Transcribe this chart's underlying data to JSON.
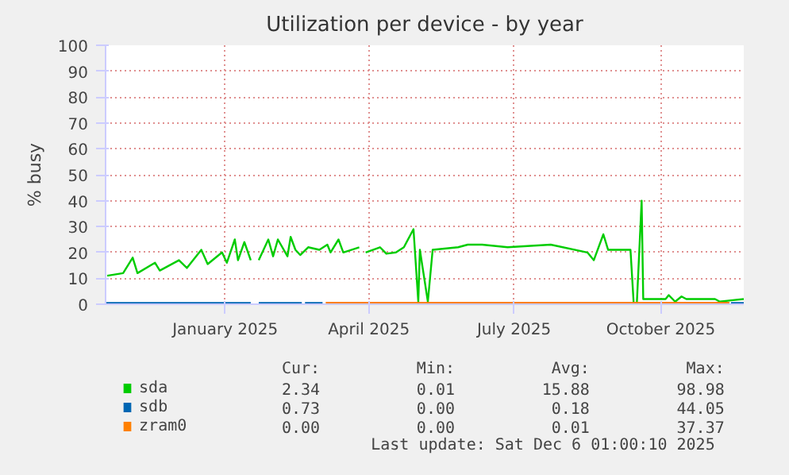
{
  "chart_data": {
    "type": "line",
    "title": "Utilization per device - by year",
    "ylabel": "% busy",
    "xlim": [
      "2024-11-01",
      "2025-12-06"
    ],
    "ylim": [
      0,
      100
    ],
    "xticks": [
      {
        "value": "2025-01-15",
        "label": "January 2025"
      },
      {
        "value": "2025-04-15",
        "label": "April 2025"
      },
      {
        "value": "2025-07-15",
        "label": "July 2025"
      },
      {
        "value": "2025-10-15",
        "label": "October 2025"
      }
    ],
    "yticks": [
      0,
      10,
      20,
      30,
      40,
      50,
      60,
      70,
      80,
      90,
      100
    ],
    "grid": true,
    "legend": "bottom",
    "series": [
      {
        "name": "sda",
        "color": "#00cc00",
        "x": [
          "2024-11-02",
          "2024-11-12",
          "2024-11-18",
          "2024-11-21",
          "2024-12-02",
          "2024-12-05",
          "2024-12-17",
          "2024-12-22",
          "2024-12-31",
          "2025-01-04",
          "2025-01-13",
          "2025-01-16",
          "2025-01-21",
          "2025-01-23",
          "2025-01-27",
          "2025-01-31",
          "2025-02-01",
          "2025-02-05",
          "2025-02-11",
          "2025-02-14",
          "2025-02-17",
          "2025-02-23",
          "2025-02-25",
          "2025-02-28",
          "2025-03-03",
          "2025-03-08",
          "2025-03-15",
          "2025-03-20",
          "2025-03-22",
          "2025-03-27",
          "2025-03-30",
          "2025-04-09",
          "2025-04-11",
          "2025-04-13",
          "2025-04-22",
          "2025-04-26",
          "2025-05-02",
          "2025-05-07",
          "2025-05-13",
          "2025-05-16",
          "2025-05-17",
          "2025-05-22",
          "2025-05-25",
          "2025-06-10",
          "2025-06-16",
          "2025-06-25",
          "2025-07-11",
          "2025-08-07",
          "2025-08-30",
          "2025-09-03",
          "2025-09-09",
          "2025-09-12",
          "2025-09-26",
          "2025-09-28",
          "2025-09-30",
          "2025-10-03",
          "2025-10-04",
          "2025-10-18",
          "2025-10-20",
          "2025-10-24",
          "2025-10-28",
          "2025-10-31",
          "2025-11-18",
          "2025-11-21",
          "2025-11-28",
          "2025-12-06"
        ],
        "values": [
          11,
          12,
          18,
          12,
          16,
          13,
          17,
          14,
          21,
          15.5,
          20,
          16,
          25,
          17,
          24,
          17,
          null,
          17,
          25,
          18.5,
          25,
          18.5,
          26,
          21,
          19,
          22,
          21,
          23,
          20,
          25,
          20,
          22,
          null,
          20,
          22,
          19.5,
          20,
          22,
          29,
          1,
          21,
          1,
          21,
          22,
          23,
          23,
          22,
          23,
          20,
          17,
          27,
          21,
          21,
          0.5,
          0.5,
          40,
          2,
          2,
          3.5,
          1,
          3,
          2,
          2,
          1,
          1.5,
          2
        ]
      },
      {
        "name": "sdb",
        "color": "#0066b3",
        "x": [
          "2024-11-01",
          "2025-01-31",
          "2025-02-01",
          "2025-02-05",
          "2025-03-04",
          "2025-03-05",
          "2025-03-06",
          "2025-03-17",
          "2025-03-18",
          "2025-11-28",
          "2025-12-06"
        ],
        "values": [
          0.5,
          0.5,
          null,
          0.5,
          0.5,
          null,
          0.5,
          0.5,
          null,
          0.5,
          0.5
        ]
      },
      {
        "name": "zram0",
        "color": "#ff8000",
        "x": [
          "2025-03-19",
          "2025-11-27"
        ],
        "values": [
          0,
          0
        ]
      }
    ],
    "annotations": [
      "Cur:",
      "Min:",
      "Avg:",
      "Max:",
      "2.34",
      "0.01",
      "15.88",
      "98.98",
      "0.73",
      "0.00",
      "0.18",
      "44.05",
      "0.00",
      "0.00",
      "0.01",
      "37.37",
      "Last update: Sat Dec  6 01:00:10 2025"
    ]
  }
}
